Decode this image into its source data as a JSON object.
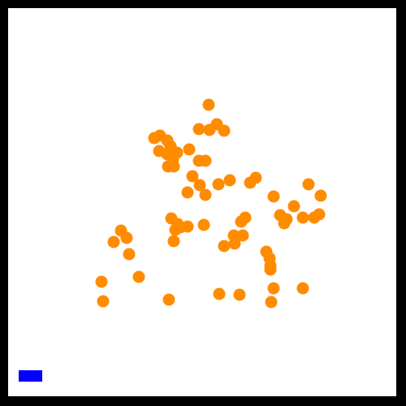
{
  "game": {
    "background_color": "#ffffff",
    "border_color": "#000000",
    "player": {
      "color": "#0000ff",
      "shape": "rectangle"
    },
    "enemies": {
      "color": "#ff8c00",
      "shape": "circle",
      "count": 76
    }
  }
}
